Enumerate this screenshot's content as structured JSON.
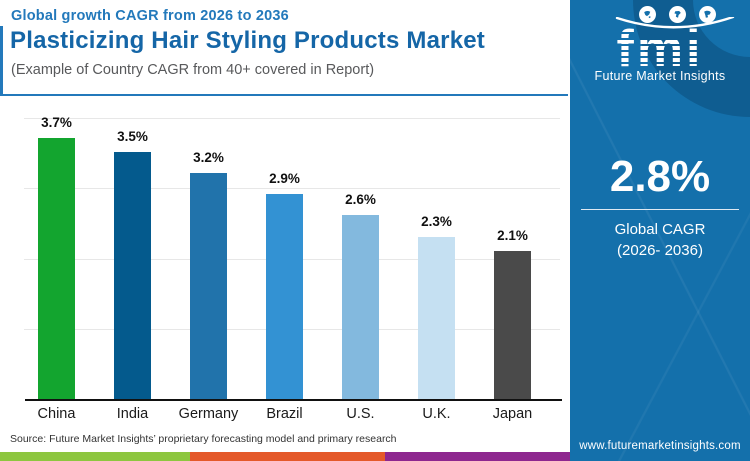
{
  "header": {
    "subtitle": "Global growth CAGR from 2026 to 2036",
    "title": "Plasticizing Hair Styling Products Market",
    "note": "(Example of Country CAGR from 40+ covered in Report)"
  },
  "chart_data": {
    "type": "bar",
    "title": "Plasticizing Hair Styling Products Market",
    "subtitle": "Global growth CAGR from 2026 to 2036",
    "note": "(Example of Country CAGR from 40+ covered in Report)",
    "categories": [
      "China",
      "India",
      "Germany",
      "Brazil",
      "U.S.",
      "U.K.",
      "Japan"
    ],
    "values": [
      3.7,
      3.5,
      3.2,
      2.9,
      2.6,
      2.3,
      2.1
    ],
    "labels": [
      "3.7%",
      "3.5%",
      "3.2%",
      "2.9%",
      "2.6%",
      "2.3%",
      "2.1%"
    ],
    "bar_colors": [
      "#13a52f",
      "#045a8d",
      "#2173ab",
      "#3392d3",
      "#83b9de",
      "#c5e0f2",
      "#4a4a4a"
    ],
    "xlabel": "",
    "ylabel": "",
    "ylim": [
      0,
      4.3
    ],
    "gridline_values": [
      1,
      2,
      3,
      4
    ],
    "grid": "horizontal-light",
    "legend": "none"
  },
  "sidebar": {
    "bg_color": "#1470ab",
    "logo_text": "fmi",
    "logo_name": "Future Market Insights",
    "stat_value": "2.8%",
    "stat_label_line1": "Global CAGR",
    "stat_label_line2": "(2026- 2036)",
    "website": "www.futuremarketinsights.com"
  },
  "footer": {
    "source": "Source: Future Market Insights’ proprietary forecasting model and primary research",
    "strip_colors": [
      "#8dc63f",
      "#e4592a",
      "#8e278f"
    ]
  }
}
